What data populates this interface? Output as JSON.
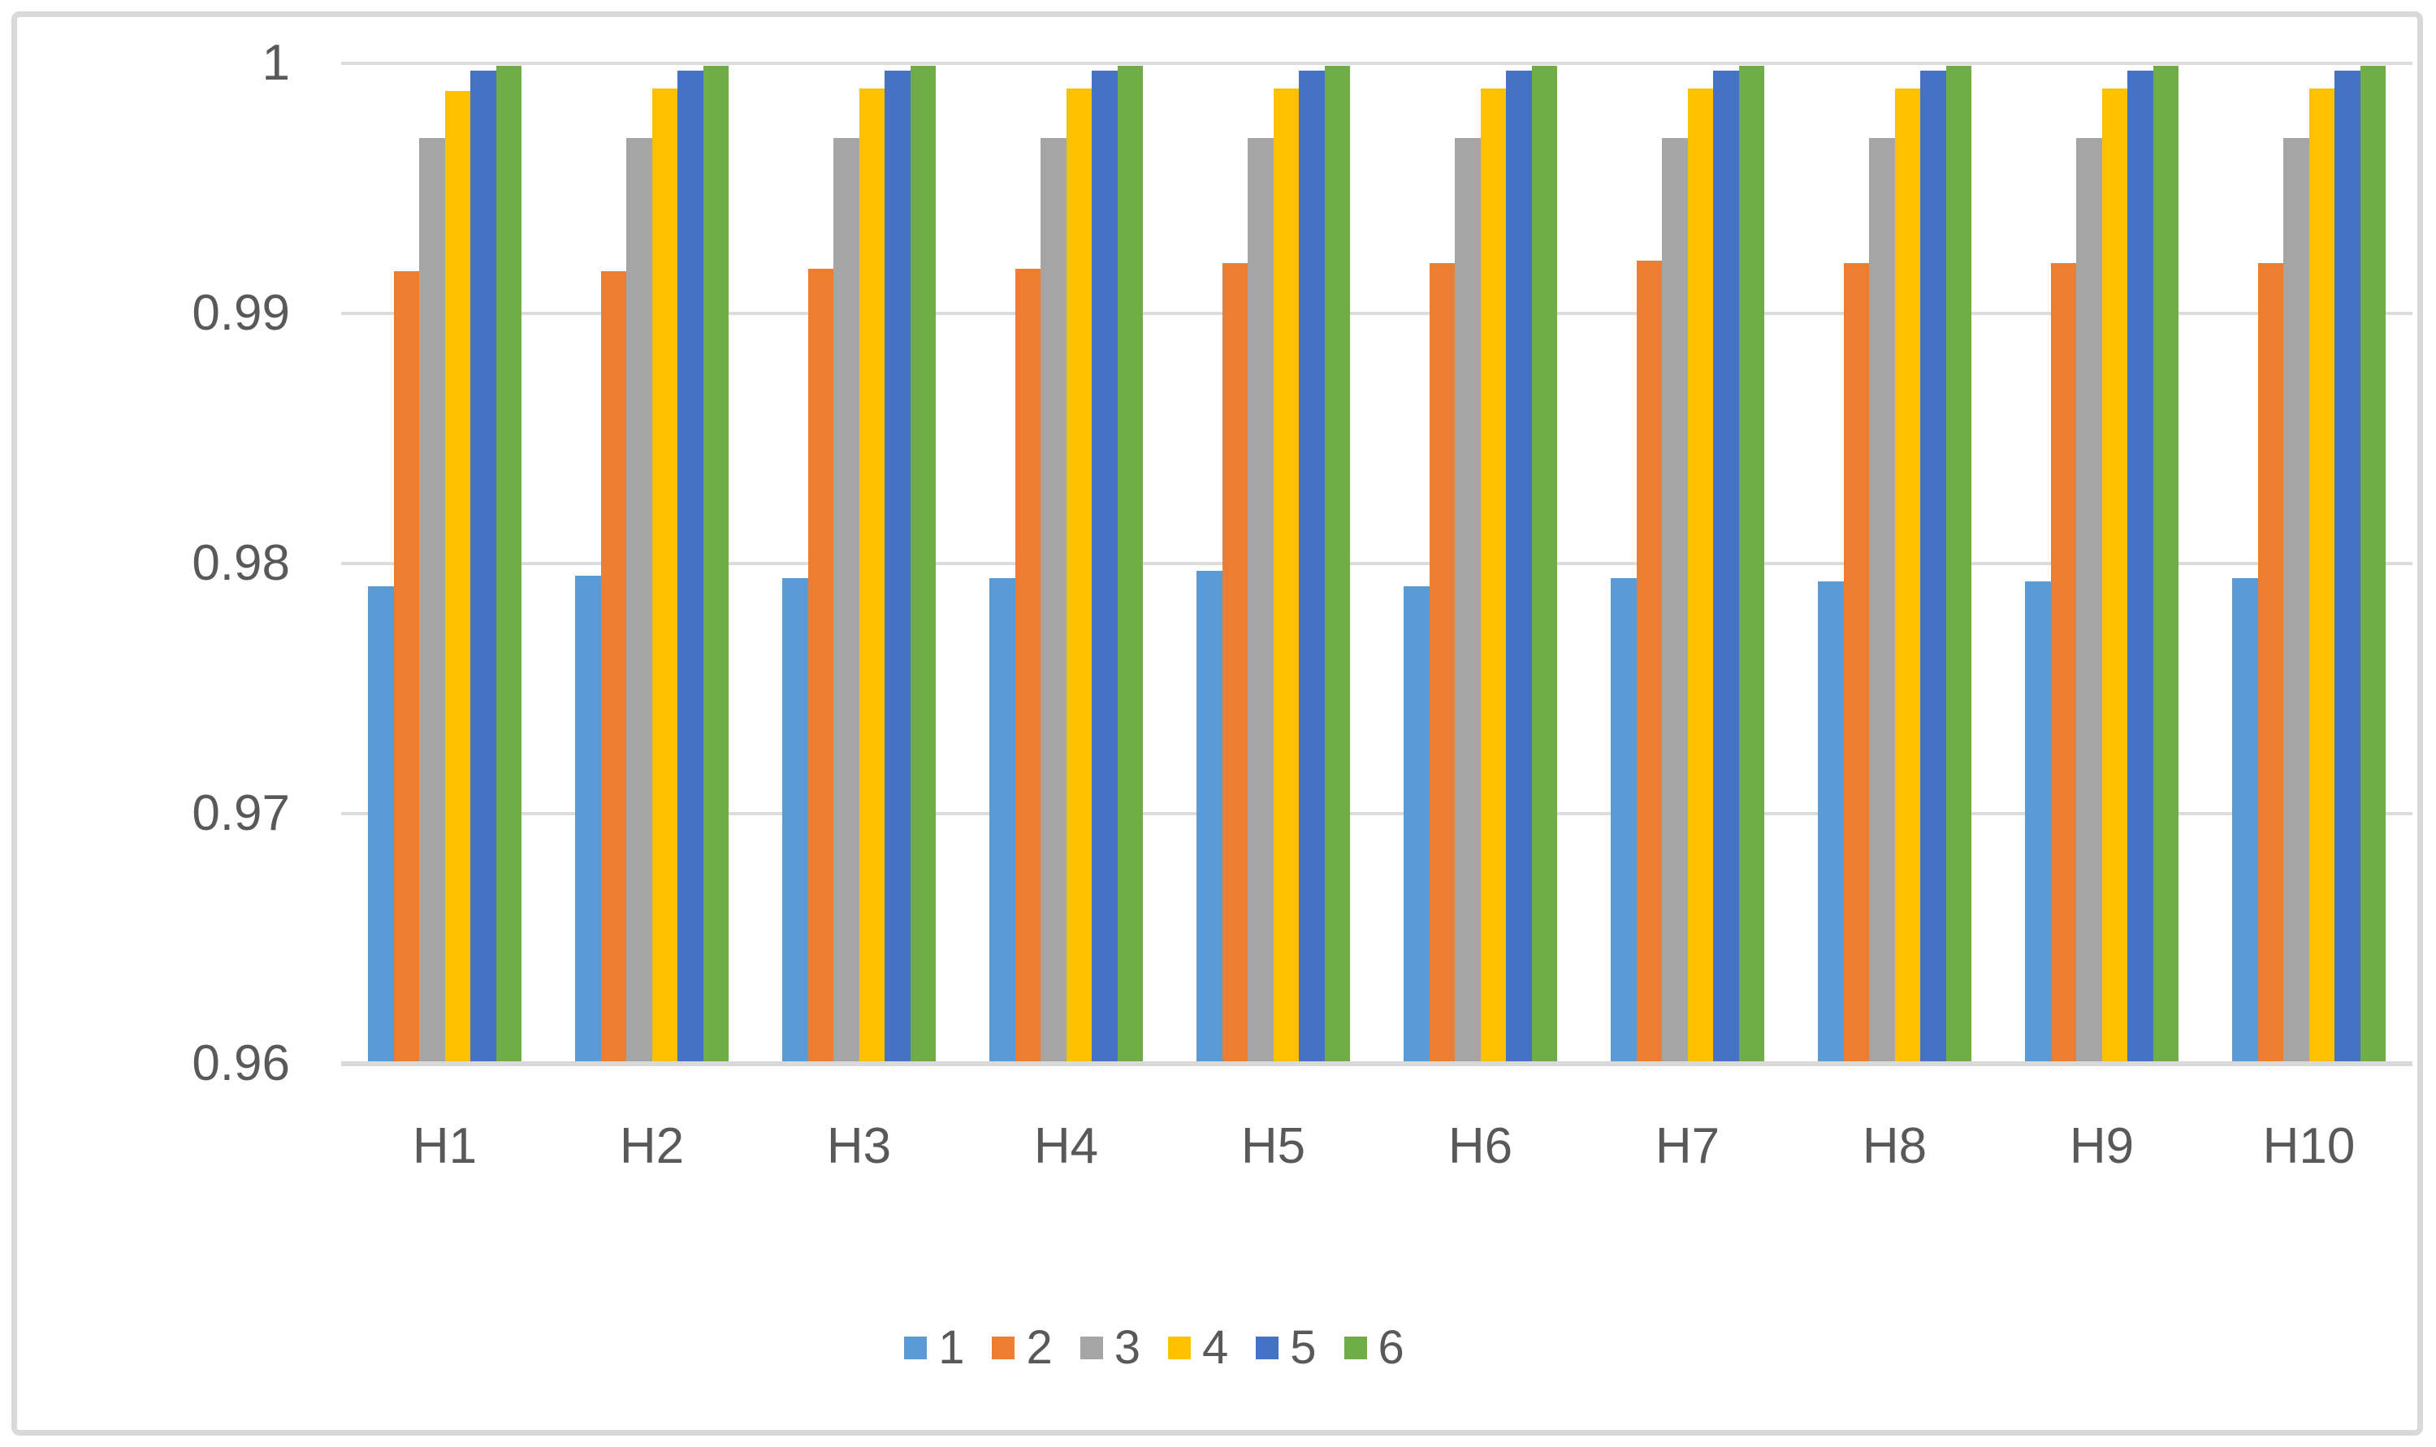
{
  "chart_data": {
    "type": "bar",
    "title": "",
    "xlabel": "",
    "ylabel": "",
    "categories": [
      "H1",
      "H2",
      "H3",
      "H4",
      "H5",
      "H6",
      "H7",
      "H8",
      "H9",
      "H10"
    ],
    "series": [
      {
        "name": "1",
        "color": "#5B9BD5",
        "values": [
          0.9791,
          0.9795,
          0.9794,
          0.9794,
          0.9797,
          0.9791,
          0.9794,
          0.9793,
          0.9793,
          0.9794
        ]
      },
      {
        "name": "2",
        "color": "#ED7D31",
        "values": [
          0.9917,
          0.9917,
          0.9918,
          0.9918,
          0.992,
          0.992,
          0.9921,
          0.992,
          0.992,
          0.992
        ]
      },
      {
        "name": "3",
        "color": "#A5A5A5",
        "values": [
          0.997,
          0.997,
          0.997,
          0.997,
          0.997,
          0.997,
          0.997,
          0.997,
          0.997,
          0.997
        ]
      },
      {
        "name": "4",
        "color": "#FFC000",
        "values": [
          0.9989,
          0.999,
          0.999,
          0.999,
          0.999,
          0.999,
          0.999,
          0.999,
          0.999,
          0.999
        ]
      },
      {
        "name": "5",
        "color": "#4472C4",
        "values": [
          0.9997,
          0.9997,
          0.9997,
          0.9997,
          0.9997,
          0.9997,
          0.9997,
          0.9997,
          0.9997,
          0.9997
        ]
      },
      {
        "name": "6",
        "color": "#70AD47",
        "values": [
          0.9999,
          0.9999,
          0.9999,
          0.9999,
          0.9999,
          0.9999,
          0.9999,
          0.9999,
          0.9999,
          0.9999
        ]
      }
    ],
    "ylim": [
      0.96,
      1.0
    ],
    "yticks": [
      {
        "value": 0.96,
        "label": "0.96"
      },
      {
        "value": 0.97,
        "label": "0.97"
      },
      {
        "value": 0.98,
        "label": "0.98"
      },
      {
        "value": 0.99,
        "label": "0.99"
      },
      {
        "value": 1.0,
        "label": "1"
      }
    ],
    "grid": true,
    "legend_position": "bottom",
    "legend_labels": [
      "1",
      "2",
      "3",
      "4",
      "5",
      "6"
    ]
  },
  "frame": {
    "border_color": "#D9D9D9",
    "background_color": "#FFFFFF",
    "gridline_color": "#DCDCDC",
    "text_color": "#595959"
  }
}
